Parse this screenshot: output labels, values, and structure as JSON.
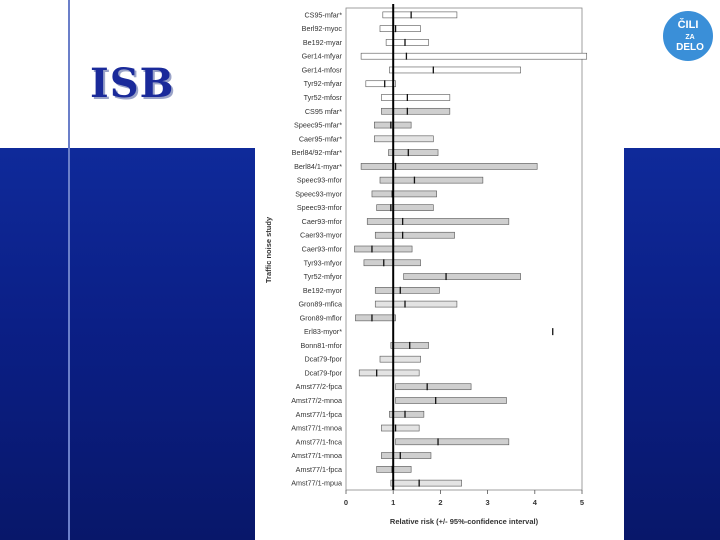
{
  "slide": {
    "title": "ISB",
    "logo": {
      "lines": [
        "ČILI",
        "ZA",
        "DELO"
      ],
      "colors": {
        "circle": "#3a8fd8",
        "text": "#ffffff"
      }
    }
  },
  "colors": {
    "band": "#0b1f86",
    "accent_line": "#6b7fc9",
    "title": "#1a2a9a"
  },
  "chart_data": {
    "type": "bar",
    "subtype": "forest-plot",
    "xlabel": "Relative risk (+/- 95%-confidence interval)",
    "ylabel": "Traffic noise study",
    "xlim": [
      0,
      5
    ],
    "xticks": [
      0,
      1,
      2,
      3,
      4,
      5
    ],
    "reference_line": 1,
    "grid": false,
    "rows": [
      {
        "label": "CS95-mfar*",
        "lo": 0.78,
        "est": 1.38,
        "hi": 2.35,
        "fill": "white"
      },
      {
        "label": "Berl92-myoc",
        "lo": 0.72,
        "est": 1.05,
        "hi": 1.58,
        "fill": "white"
      },
      {
        "label": "Be192-myar",
        "lo": 0.85,
        "est": 1.25,
        "hi": 1.75,
        "fill": "white"
      },
      {
        "label": "Ger14-mfyar",
        "lo": 0.32,
        "est": 1.28,
        "hi": 5.1,
        "fill": "white"
      },
      {
        "label": "Ger14-mfosr",
        "lo": 0.92,
        "est": 1.85,
        "hi": 3.7,
        "fill": "white"
      },
      {
        "label": "Tyr92-mfyar",
        "lo": 0.42,
        "est": 0.82,
        "hi": 1.05,
        "fill": "white"
      },
      {
        "label": "Tyr52-mfosr",
        "lo": 0.75,
        "est": 1.3,
        "hi": 2.2,
        "fill": "white"
      },
      {
        "label": "CS95 mfar*",
        "lo": 0.75,
        "est": 1.3,
        "hi": 2.2,
        "fill": "gray"
      },
      {
        "label": "Speec95-mfar*",
        "lo": 0.6,
        "est": 0.95,
        "hi": 1.38,
        "fill": "gray"
      },
      {
        "label": "Caer95-mfar*",
        "lo": 0.6,
        "est": 1.0,
        "hi": 1.85,
        "fill": "light"
      },
      {
        "label": "Berl84/92-mfar*",
        "lo": 0.9,
        "est": 1.32,
        "hi": 1.95,
        "fill": "gray"
      },
      {
        "label": "Berl84/1-myar*",
        "lo": 0.32,
        "est": 1.05,
        "hi": 4.05,
        "fill": "gray"
      },
      {
        "label": "Speec93-mfor",
        "lo": 0.72,
        "est": 1.45,
        "hi": 2.9,
        "fill": "gray"
      },
      {
        "label": "Speec93-myor",
        "lo": 0.55,
        "est": 0.98,
        "hi": 1.92,
        "fill": "gray"
      },
      {
        "label": "Speec93-mfor",
        "lo": 0.65,
        "est": 0.95,
        "hi": 1.85,
        "fill": "gray"
      },
      {
        "label": "Caer93-mfor",
        "lo": 0.45,
        "est": 1.2,
        "hi": 3.45,
        "fill": "gray"
      },
      {
        "label": "Caer93-myor",
        "lo": 0.62,
        "est": 1.2,
        "hi": 2.3,
        "fill": "gray"
      },
      {
        "label": "Caer93-mfor",
        "lo": 0.18,
        "est": 0.55,
        "hi": 1.4,
        "fill": "gray"
      },
      {
        "label": "Tyr93-mfyor",
        "lo": 0.38,
        "est": 0.8,
        "hi": 1.58,
        "fill": "gray"
      },
      {
        "label": "Tyr52-mfyor",
        "lo": 1.22,
        "est": 2.12,
        "hi": 3.7,
        "fill": "gray"
      },
      {
        "label": "Be192-myor",
        "lo": 0.62,
        "est": 1.15,
        "hi": 1.98,
        "fill": "gray"
      },
      {
        "label": "Gron89-mfica",
        "lo": 0.62,
        "est": 1.25,
        "hi": 2.35,
        "fill": "light"
      },
      {
        "label": "Gron89-mflor",
        "lo": 0.2,
        "est": 0.55,
        "hi": 1.05,
        "fill": "gray"
      },
      {
        "label": "Erl83-myor*",
        "lo": 4.38,
        "est": 4.38,
        "hi": 4.38,
        "fill": "gray"
      },
      {
        "label": "Bonn81-mfor",
        "lo": 0.95,
        "est": 1.35,
        "hi": 1.75,
        "fill": "gray"
      },
      {
        "label": "Dcat79-fpor",
        "lo": 0.72,
        "est": 1.0,
        "hi": 1.58,
        "fill": "light"
      },
      {
        "label": "Dcat79-fpor",
        "lo": 0.28,
        "est": 0.65,
        "hi": 1.55,
        "fill": "light"
      },
      {
        "label": "Amst77/2-fpca",
        "lo": 1.05,
        "est": 1.72,
        "hi": 2.65,
        "fill": "gray"
      },
      {
        "label": "Amst77/2-mnoa",
        "lo": 1.05,
        "est": 1.9,
        "hi": 3.4,
        "fill": "gray"
      },
      {
        "label": "Amst77/1-fpca",
        "lo": 0.92,
        "est": 1.25,
        "hi": 1.65,
        "fill": "gray"
      },
      {
        "label": "Amst77/1-mnoa",
        "lo": 0.75,
        "est": 1.05,
        "hi": 1.55,
        "fill": "light"
      },
      {
        "label": "Amst77/1-fnca",
        "lo": 1.05,
        "est": 1.95,
        "hi": 3.45,
        "fill": "gray"
      },
      {
        "label": "Amst77/1-mnoa",
        "lo": 0.75,
        "est": 1.15,
        "hi": 1.8,
        "fill": "gray"
      },
      {
        "label": "Amst77/1-fpca",
        "lo": 0.65,
        "est": 0.98,
        "hi": 1.38,
        "fill": "gray"
      },
      {
        "label": "Amst77/1-mpua",
        "lo": 0.95,
        "est": 1.55,
        "hi": 2.45,
        "fill": "light"
      }
    ]
  }
}
